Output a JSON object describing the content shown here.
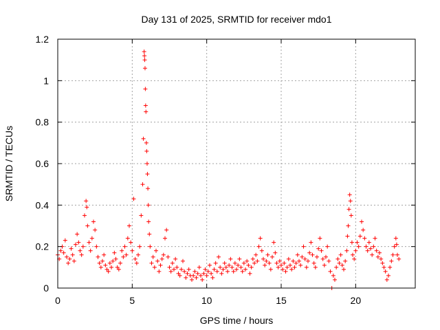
{
  "chart_data": {
    "type": "scatter",
    "title": "Day 131 of 2025, SRMTID for receiver mdo1",
    "xlabel": "GPS time / hours",
    "ylabel": "SRMTID / TECUs",
    "xlim": [
      0,
      24
    ],
    "ylim": [
      0,
      1.2
    ],
    "xticks": [
      0,
      5,
      10,
      15,
      20
    ],
    "xtick_labels": [
      "0",
      "5",
      "10",
      "15",
      "20"
    ],
    "yticks": [
      0,
      0.2,
      0.4,
      0.6,
      0.8,
      1.0,
      1.2
    ],
    "ytick_labels": [
      "0",
      "0.2",
      "0.4",
      "0.6",
      "0.8",
      "1",
      "1.2"
    ],
    "grid": true,
    "marker": "+",
    "color": "#ff0000",
    "series": [
      {
        "name": "SRMTID",
        "points": [
          [
            0.0,
            0.16
          ],
          [
            0.1,
            0.14
          ],
          [
            0.2,
            0.18
          ],
          [
            0.3,
            0.2
          ],
          [
            0.4,
            0.17
          ],
          [
            0.5,
            0.23
          ],
          [
            0.6,
            0.15
          ],
          [
            0.7,
            0.12
          ],
          [
            0.8,
            0.14
          ],
          [
            0.9,
            0.19
          ],
          [
            1.0,
            0.16
          ],
          [
            1.1,
            0.13
          ],
          [
            1.2,
            0.21
          ],
          [
            1.3,
            0.26
          ],
          [
            1.4,
            0.22
          ],
          [
            1.5,
            0.18
          ],
          [
            1.6,
            0.16
          ],
          [
            1.7,
            0.2
          ],
          [
            1.8,
            0.35
          ],
          [
            1.9,
            0.42
          ],
          [
            1.95,
            0.39
          ],
          [
            2.0,
            0.3
          ],
          [
            2.1,
            0.22
          ],
          [
            2.2,
            0.18
          ],
          [
            2.3,
            0.24
          ],
          [
            2.4,
            0.32
          ],
          [
            2.5,
            0.28
          ],
          [
            2.6,
            0.2
          ],
          [
            2.7,
            0.15
          ],
          [
            2.8,
            0.12
          ],
          [
            2.9,
            0.1
          ],
          [
            3.0,
            0.13
          ],
          [
            3.1,
            0.16
          ],
          [
            3.2,
            0.11
          ],
          [
            3.3,
            0.09
          ],
          [
            3.4,
            0.08
          ],
          [
            3.5,
            0.12
          ],
          [
            3.6,
            0.1
          ],
          [
            3.7,
            0.13
          ],
          [
            3.8,
            0.17
          ],
          [
            3.9,
            0.14
          ],
          [
            4.0,
            0.1
          ],
          [
            4.1,
            0.09
          ],
          [
            4.2,
            0.12
          ],
          [
            4.3,
            0.18
          ],
          [
            4.4,
            0.15
          ],
          [
            4.5,
            0.2
          ],
          [
            4.6,
            0.16
          ],
          [
            4.7,
            0.24
          ],
          [
            4.8,
            0.3
          ],
          [
            4.9,
            0.22
          ],
          [
            5.0,
            0.18
          ],
          [
            5.1,
            0.43
          ],
          [
            5.2,
            0.14
          ],
          [
            5.3,
            0.12
          ],
          [
            5.4,
            0.16
          ],
          [
            5.5,
            0.2
          ],
          [
            5.6,
            0.35
          ],
          [
            5.7,
            0.5
          ],
          [
            5.75,
            0.72
          ],
          [
            5.8,
            1.14
          ],
          [
            5.82,
            1.12
          ],
          [
            5.84,
            1.1
          ],
          [
            5.86,
            1.06
          ],
          [
            5.88,
            0.96
          ],
          [
            5.9,
            0.88
          ],
          [
            5.92,
            0.85
          ],
          [
            5.95,
            0.7
          ],
          [
            5.97,
            0.66
          ],
          [
            6.0,
            0.6
          ],
          [
            6.02,
            0.55
          ],
          [
            6.05,
            0.48
          ],
          [
            6.08,
            0.4
          ],
          [
            6.1,
            0.32
          ],
          [
            6.15,
            0.26
          ],
          [
            6.2,
            0.2
          ],
          [
            6.3,
            0.12
          ],
          [
            6.4,
            0.15
          ],
          [
            6.5,
            0.1
          ],
          [
            6.6,
            0.18
          ],
          [
            6.7,
            0.13
          ],
          [
            6.8,
            0.08
          ],
          [
            6.9,
            0.11
          ],
          [
            7.0,
            0.14
          ],
          [
            7.1,
            0.16
          ],
          [
            7.2,
            0.24
          ],
          [
            7.3,
            0.28
          ],
          [
            7.4,
            0.15
          ],
          [
            7.5,
            0.1
          ],
          [
            7.6,
            0.08
          ],
          [
            7.7,
            0.12
          ],
          [
            7.8,
            0.09
          ],
          [
            7.9,
            0.14
          ],
          [
            8.0,
            0.1
          ],
          [
            8.1,
            0.07
          ],
          [
            8.2,
            0.06
          ],
          [
            8.3,
            0.09
          ],
          [
            8.4,
            0.13
          ],
          [
            8.5,
            0.08
          ],
          [
            8.6,
            0.05
          ],
          [
            8.7,
            0.07
          ],
          [
            8.8,
            0.09
          ],
          [
            8.9,
            0.06
          ],
          [
            9.0,
            0.04
          ],
          [
            9.1,
            0.06
          ],
          [
            9.2,
            0.08
          ],
          [
            9.3,
            0.05
          ],
          [
            9.4,
            0.07
          ],
          [
            9.5,
            0.1
          ],
          [
            9.6,
            0.06
          ],
          [
            9.7,
            0.04
          ],
          [
            9.8,
            0.07
          ],
          [
            9.9,
            0.09
          ],
          [
            10.0,
            0.06
          ],
          [
            10.1,
            0.08
          ],
          [
            10.2,
            0.11
          ],
          [
            10.3,
            0.07
          ],
          [
            10.4,
            0.05
          ],
          [
            10.5,
            0.09
          ],
          [
            10.6,
            0.12
          ],
          [
            10.7,
            0.08
          ],
          [
            10.8,
            0.15
          ],
          [
            10.9,
            0.1
          ],
          [
            11.0,
            0.07
          ],
          [
            11.1,
            0.09
          ],
          [
            11.2,
            0.12
          ],
          [
            11.3,
            0.1
          ],
          [
            11.4,
            0.08
          ],
          [
            11.5,
            0.11
          ],
          [
            11.6,
            0.14
          ],
          [
            11.7,
            0.1
          ],
          [
            11.8,
            0.08
          ],
          [
            11.9,
            0.12
          ],
          [
            12.0,
            0.09
          ],
          [
            12.1,
            0.11
          ],
          [
            12.2,
            0.14
          ],
          [
            12.3,
            0.1
          ],
          [
            12.4,
            0.08
          ],
          [
            12.5,
            0.12
          ],
          [
            12.6,
            0.09
          ],
          [
            12.7,
            0.13
          ],
          [
            12.8,
            0.11
          ],
          [
            12.9,
            0.07
          ],
          [
            13.0,
            0.1
          ],
          [
            13.1,
            0.14
          ],
          [
            13.2,
            0.12
          ],
          [
            13.3,
            0.16
          ],
          [
            13.4,
            0.13
          ],
          [
            13.5,
            0.2
          ],
          [
            13.6,
            0.24
          ],
          [
            13.7,
            0.18
          ],
          [
            13.8,
            0.14
          ],
          [
            13.9,
            0.11
          ],
          [
            14.0,
            0.13
          ],
          [
            14.1,
            0.16
          ],
          [
            14.2,
            0.12
          ],
          [
            14.3,
            0.09
          ],
          [
            14.4,
            0.15
          ],
          [
            14.5,
            0.22
          ],
          [
            14.6,
            0.17
          ],
          [
            14.7,
            0.12
          ],
          [
            14.8,
            0.1
          ],
          [
            14.9,
            0.13
          ],
          [
            15.0,
            0.11
          ],
          [
            15.1,
            0.09
          ],
          [
            15.2,
            0.12
          ],
          [
            15.3,
            0.08
          ],
          [
            15.4,
            0.1
          ],
          [
            15.5,
            0.14
          ],
          [
            15.6,
            0.11
          ],
          [
            15.7,
            0.09
          ],
          [
            15.8,
            0.13
          ],
          [
            15.9,
            0.1
          ],
          [
            16.0,
            0.12
          ],
          [
            16.1,
            0.16
          ],
          [
            16.2,
            0.13
          ],
          [
            16.3,
            0.11
          ],
          [
            16.4,
            0.15
          ],
          [
            16.5,
            0.2
          ],
          [
            16.6,
            0.14
          ],
          [
            16.7,
            0.1
          ],
          [
            16.8,
            0.13
          ],
          [
            16.9,
            0.17
          ],
          [
            17.0,
            0.22
          ],
          [
            17.1,
            0.16
          ],
          [
            17.2,
            0.12
          ],
          [
            17.3,
            0.1
          ],
          [
            17.4,
            0.15
          ],
          [
            17.5,
            0.19
          ],
          [
            17.6,
            0.24
          ],
          [
            17.7,
            0.18
          ],
          [
            17.8,
            0.14
          ],
          [
            17.9,
            0.11
          ],
          [
            18.0,
            0.15
          ],
          [
            18.1,
            0.2
          ],
          [
            18.2,
            0.13
          ],
          [
            18.3,
            0.08
          ],
          [
            18.4,
            0.0
          ],
          [
            18.5,
            0.06
          ],
          [
            18.6,
            0.04
          ],
          [
            18.7,
            0.1
          ],
          [
            18.8,
            0.14
          ],
          [
            18.9,
            0.12
          ],
          [
            19.0,
            0.16
          ],
          [
            19.1,
            0.11
          ],
          [
            19.2,
            0.09
          ],
          [
            19.3,
            0.13
          ],
          [
            19.4,
            0.18
          ],
          [
            19.45,
            0.25
          ],
          [
            19.5,
            0.3
          ],
          [
            19.55,
            0.38
          ],
          [
            19.6,
            0.45
          ],
          [
            19.65,
            0.42
          ],
          [
            19.7,
            0.35
          ],
          [
            19.75,
            0.22
          ],
          [
            19.8,
            0.16
          ],
          [
            19.9,
            0.14
          ],
          [
            20.0,
            0.18
          ],
          [
            20.1,
            0.22
          ],
          [
            20.2,
            0.2
          ],
          [
            20.3,
            0.25
          ],
          [
            20.4,
            0.32
          ],
          [
            20.5,
            0.28
          ],
          [
            20.6,
            0.24
          ],
          [
            20.7,
            0.2
          ],
          [
            20.8,
            0.18
          ],
          [
            20.9,
            0.22
          ],
          [
            21.0,
            0.19
          ],
          [
            21.1,
            0.16
          ],
          [
            21.2,
            0.2
          ],
          [
            21.3,
            0.24
          ],
          [
            21.4,
            0.18
          ],
          [
            21.5,
            0.15
          ],
          [
            21.6,
            0.17
          ],
          [
            21.7,
            0.14
          ],
          [
            21.8,
            0.12
          ],
          [
            21.9,
            0.1
          ],
          [
            22.0,
            0.08
          ],
          [
            22.1,
            0.04
          ],
          [
            22.2,
            0.06
          ],
          [
            22.3,
            0.1
          ],
          [
            22.4,
            0.13
          ],
          [
            22.5,
            0.16
          ],
          [
            22.6,
            0.2
          ],
          [
            22.7,
            0.24
          ],
          [
            22.75,
            0.21
          ],
          [
            22.8,
            0.16
          ],
          [
            22.9,
            0.14
          ]
        ]
      }
    ]
  }
}
